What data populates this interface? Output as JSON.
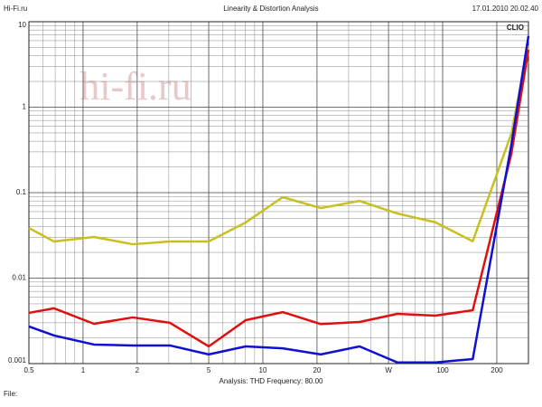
{
  "header": {
    "site": "Hi-Fi.ru",
    "title": "Linearity & Distortion Analysis",
    "timestamp": "17.01.2010 20.02.40"
  },
  "footer": {
    "analysis": "Analysis: THD  Frequency: 80.00",
    "file": "File:"
  },
  "chart_data": {
    "type": "line",
    "brand": "CLIO",
    "watermark": "hi-fi.ru",
    "x": [
      0.5,
      0.69,
      1.15,
      1.89,
      3.04,
      5,
      8.03,
      12.9,
      21,
      34.5,
      56,
      91,
      147,
      241,
      300
    ],
    "series": [
      {
        "name": "",
        "color": "#c8c01e",
        "values": [
          0.0386,
          0.0268,
          0.0303,
          0.0249,
          0.0268,
          0.0268,
          0.0448,
          0.0885,
          0.066,
          0.08,
          0.057,
          0.045,
          0.027,
          0.49,
          5.3
        ]
      },
      {
        "name": "",
        "color": "#e01010",
        "values": [
          0.00392,
          0.00443,
          0.00292,
          0.00347,
          0.003,
          0.00159,
          0.00322,
          0.004,
          0.0029,
          0.00307,
          0.00382,
          0.00364,
          0.00421,
          0.285,
          4.7
        ]
      },
      {
        "name": "",
        "color": "#1010d0",
        "values": [
          0.00272,
          0.00213,
          0.00167,
          0.00163,
          0.00163,
          0.00128,
          0.00159,
          0.00151,
          0.00128,
          0.00159,
          0.00103,
          0.00103,
          0.00113,
          0.364,
          6.8
        ]
      }
    ],
    "xlim": [
      0.5,
      300
    ],
    "ylim": [
      0.001,
      10
    ],
    "xticks": [
      0.5,
      1,
      2,
      5,
      10,
      20,
      {
        "value": 50,
        "label": "W"
      },
      100,
      200
    ],
    "yticks": [
      0.001,
      0.01,
      0.1,
      1,
      10
    ],
    "xscale": "log",
    "yscale": "log",
    "grid": true
  }
}
